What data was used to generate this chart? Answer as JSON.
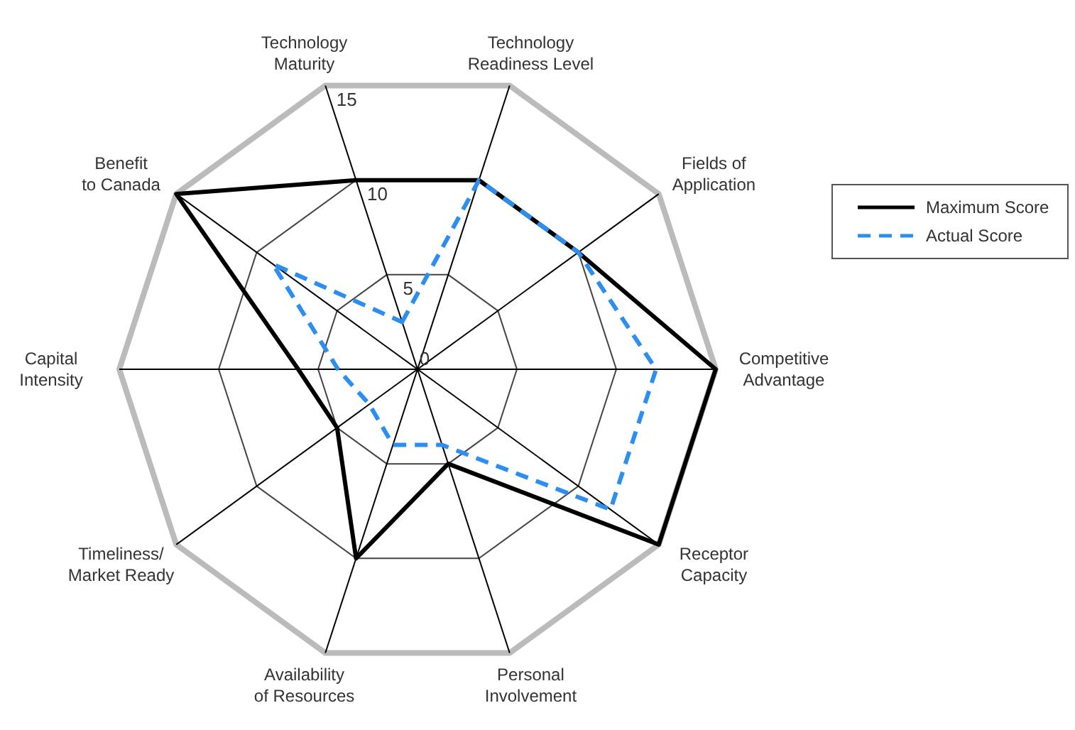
{
  "chart_data": {
    "type": "radar",
    "categories": [
      "Technology\nMaturity",
      "Technology\nReadiness Level",
      "Fields of\nApplication",
      "Competitive\nAdvantage",
      "Receptor\nCapacity",
      "Personal\nInvolvement",
      "Availability\nof Resources",
      "Timeliness/\nMarket Ready",
      "Capital\nIntensity",
      "Benefit\nto Canada"
    ],
    "series": [
      {
        "name": "Maximum Score",
        "color": "#000000",
        "line_style": "solid",
        "values": [
          10,
          10,
          10,
          15,
          15,
          5,
          10,
          5,
          6,
          15
        ]
      },
      {
        "name": "Actual Score",
        "color": "#2b8ef0",
        "line_style": "dashed",
        "values": [
          2.5,
          10,
          10,
          12,
          12,
          4,
          4,
          3,
          4,
          9
        ]
      }
    ],
    "ylim": [
      0,
      15
    ],
    "yticks": [
      0,
      5,
      10,
      15
    ],
    "legend": "right",
    "marker": "none"
  }
}
